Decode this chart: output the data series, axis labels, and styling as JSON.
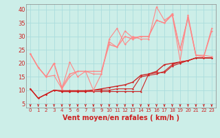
{
  "background_color": "#cceee8",
  "grid_color": "#aadddd",
  "x_label": "Vent moyen/en rafales ( km/h )",
  "x_ticks": [
    0,
    1,
    2,
    3,
    4,
    5,
    6,
    7,
    8,
    9,
    10,
    11,
    12,
    13,
    14,
    15,
    16,
    17,
    18,
    19,
    20,
    21,
    22,
    23
  ],
  "y_ticks": [
    5,
    10,
    15,
    20,
    25,
    30,
    35,
    40
  ],
  "ylim": [
    3.5,
    42
  ],
  "xlim": [
    -0.5,
    23.5
  ],
  "series": [
    {
      "x": [
        0,
        1,
        2,
        3,
        4,
        5,
        6,
        7,
        8,
        9,
        10,
        11,
        12,
        13,
        14,
        15,
        16,
        17,
        18,
        19,
        20,
        21,
        22,
        23
      ],
      "y": [
        10.5,
        7,
        8.5,
        10,
        9.5,
        9.5,
        9.5,
        9.5,
        9.5,
        9.5,
        9.5,
        9.5,
        9.5,
        9.5,
        9.5,
        16,
        16.5,
        16.5,
        19,
        20,
        21,
        22,
        22,
        22
      ],
      "color": "#cc2222",
      "lw": 0.8,
      "marker": "D",
      "ms": 1.5
    },
    {
      "x": [
        0,
        1,
        2,
        3,
        4,
        5,
        6,
        7,
        8,
        9,
        10,
        11,
        12,
        13,
        14,
        15,
        16,
        17,
        18,
        19,
        20,
        21,
        22,
        23
      ],
      "y": [
        10.5,
        7,
        8.5,
        10,
        9.5,
        9.5,
        9.5,
        9.5,
        10,
        10,
        10,
        10.5,
        10.5,
        10.5,
        15,
        15.5,
        16,
        17,
        19.5,
        20.5,
        21,
        22,
        22,
        22
      ],
      "color": "#cc2222",
      "lw": 0.8,
      "marker": "D",
      "ms": 1.5
    },
    {
      "x": [
        0,
        1,
        2,
        3,
        4,
        5,
        6,
        7,
        8,
        9,
        10,
        11,
        12,
        13,
        14,
        15,
        16,
        17,
        18,
        19,
        20,
        21,
        22,
        23
      ],
      "y": [
        10.5,
        7,
        8.5,
        10,
        9.8,
        9.8,
        9.8,
        9.8,
        10,
        10.5,
        11,
        11.5,
        12,
        13,
        15.5,
        16,
        17,
        19.5,
        20,
        20.5,
        21,
        22,
        22,
        22
      ],
      "color": "#cc2222",
      "lw": 1.0,
      "marker": "D",
      "ms": 1.5
    },
    {
      "x": [
        0,
        1,
        2,
        3,
        4,
        5,
        6,
        7,
        8,
        9,
        10,
        11,
        12,
        13,
        14,
        15,
        16,
        17,
        18,
        19,
        20,
        21,
        22,
        23
      ],
      "y": [
        23.5,
        18.5,
        15,
        15.5,
        10.5,
        20.5,
        15,
        17,
        10,
        16,
        29,
        33,
        27,
        30,
        29,
        29,
        41,
        36,
        38,
        21,
        38,
        23,
        23,
        22.5
      ],
      "color": "#ff8888",
      "lw": 0.8,
      "marker": "D",
      "ms": 1.5
    },
    {
      "x": [
        0,
        1,
        2,
        3,
        4,
        5,
        6,
        7,
        8,
        9,
        10,
        11,
        12,
        13,
        14,
        15,
        16,
        17,
        18,
        19,
        20,
        21,
        22,
        23
      ],
      "y": [
        23.5,
        18.5,
        15,
        20,
        10.5,
        15,
        17,
        17,
        16,
        16,
        28,
        26,
        32,
        29.5,
        30,
        30,
        36,
        35,
        38.5,
        25,
        37,
        23,
        22.5,
        33
      ],
      "color": "#ff8888",
      "lw": 0.8,
      "marker": "D",
      "ms": 1.5
    },
    {
      "x": [
        0,
        1,
        2,
        3,
        4,
        5,
        6,
        7,
        8,
        9,
        10,
        11,
        12,
        13,
        14,
        15,
        16,
        17,
        18,
        19,
        20,
        21,
        22,
        23
      ],
      "y": [
        23.5,
        18.5,
        15,
        20,
        11,
        16,
        17,
        17,
        17,
        17,
        27,
        26,
        30,
        29,
        30,
        30,
        36,
        35,
        38,
        25,
        37,
        23,
        22.5,
        32
      ],
      "color": "#ff8888",
      "lw": 1.0,
      "marker": "D",
      "ms": 1.5
    }
  ],
  "arrow_color": "#cc2222",
  "label_color": "#cc2222",
  "x_label_fontsize": 7,
  "y_tick_fontsize": 6,
  "x_tick_fontsize": 5
}
